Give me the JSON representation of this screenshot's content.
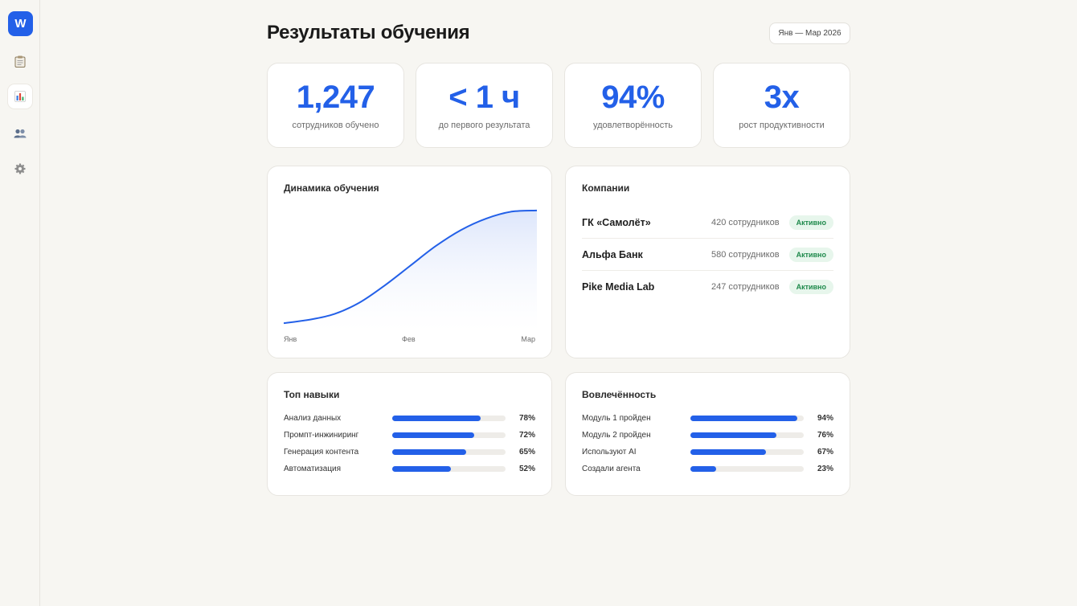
{
  "sidebar": {
    "logo": "W",
    "items": [
      {
        "icon": "clipboard-icon"
      },
      {
        "icon": "bar-chart-icon",
        "active": true
      },
      {
        "icon": "users-icon"
      },
      {
        "icon": "gear-icon"
      }
    ]
  },
  "header": {
    "title": "Результаты обучения",
    "date_range": "Янв — Мар 2026"
  },
  "stats": [
    {
      "value": "1,247",
      "label": "сотрудников обучено"
    },
    {
      "value": "< 1 ч",
      "label": "до первого результата"
    },
    {
      "value": "94%",
      "label": "удовлетворённость"
    },
    {
      "value": "3x",
      "label": "рост продуктивности"
    }
  ],
  "dynamics": {
    "title": "Динамика обучения",
    "chart_data": {
      "type": "area",
      "x_ticks": [
        "Янв",
        "Фев",
        "Мар"
      ],
      "x": [
        0,
        0.1,
        0.2,
        0.3,
        0.4,
        0.5,
        0.6,
        0.7,
        0.8,
        0.9,
        1.0
      ],
      "values": [
        0.02,
        0.05,
        0.1,
        0.2,
        0.35,
        0.52,
        0.69,
        0.83,
        0.93,
        0.99,
        1.0
      ],
      "ylim": [
        0,
        1.02
      ],
      "line_color": "#2360e8",
      "fill_color": "#dde6fb",
      "grid": false
    }
  },
  "companies": {
    "title": "Компании",
    "rows": [
      {
        "name": "ГК «Самолёт»",
        "count": "420 сотрудников",
        "status": "Активно"
      },
      {
        "name": "Альфа Банк",
        "count": "580 сотрудников",
        "status": "Активно"
      },
      {
        "name": "Pike Media Lab",
        "count": "247 сотрудников",
        "status": "Активно"
      }
    ]
  },
  "skills": {
    "title": "Топ навыки",
    "rows": [
      {
        "label": "Анализ данных",
        "value": "78%",
        "fraction": 0.78
      },
      {
        "label": "Промпт-инжиниринг",
        "value": "72%",
        "fraction": 0.72
      },
      {
        "label": "Генерация контента",
        "value": "65%",
        "fraction": 0.65
      },
      {
        "label": "Автоматизация",
        "value": "52%",
        "fraction": 0.52
      }
    ]
  },
  "engagement": {
    "title": "Вовлечённость",
    "rows": [
      {
        "label": "Модуль 1 пройден",
        "value": "94%",
        "fraction": 0.94
      },
      {
        "label": "Модуль 2 пройден",
        "value": "76%",
        "fraction": 0.76
      },
      {
        "label": "Используют AI",
        "value": "67%",
        "fraction": 0.67
      },
      {
        "label": "Создали агента",
        "value": "23%",
        "fraction": 0.23
      }
    ]
  },
  "colors": {
    "accent": "#2360e8",
    "badge_text": "#1f8a4c",
    "badge_bg": "#e7f6ec",
    "background": "#f7f6f2"
  }
}
